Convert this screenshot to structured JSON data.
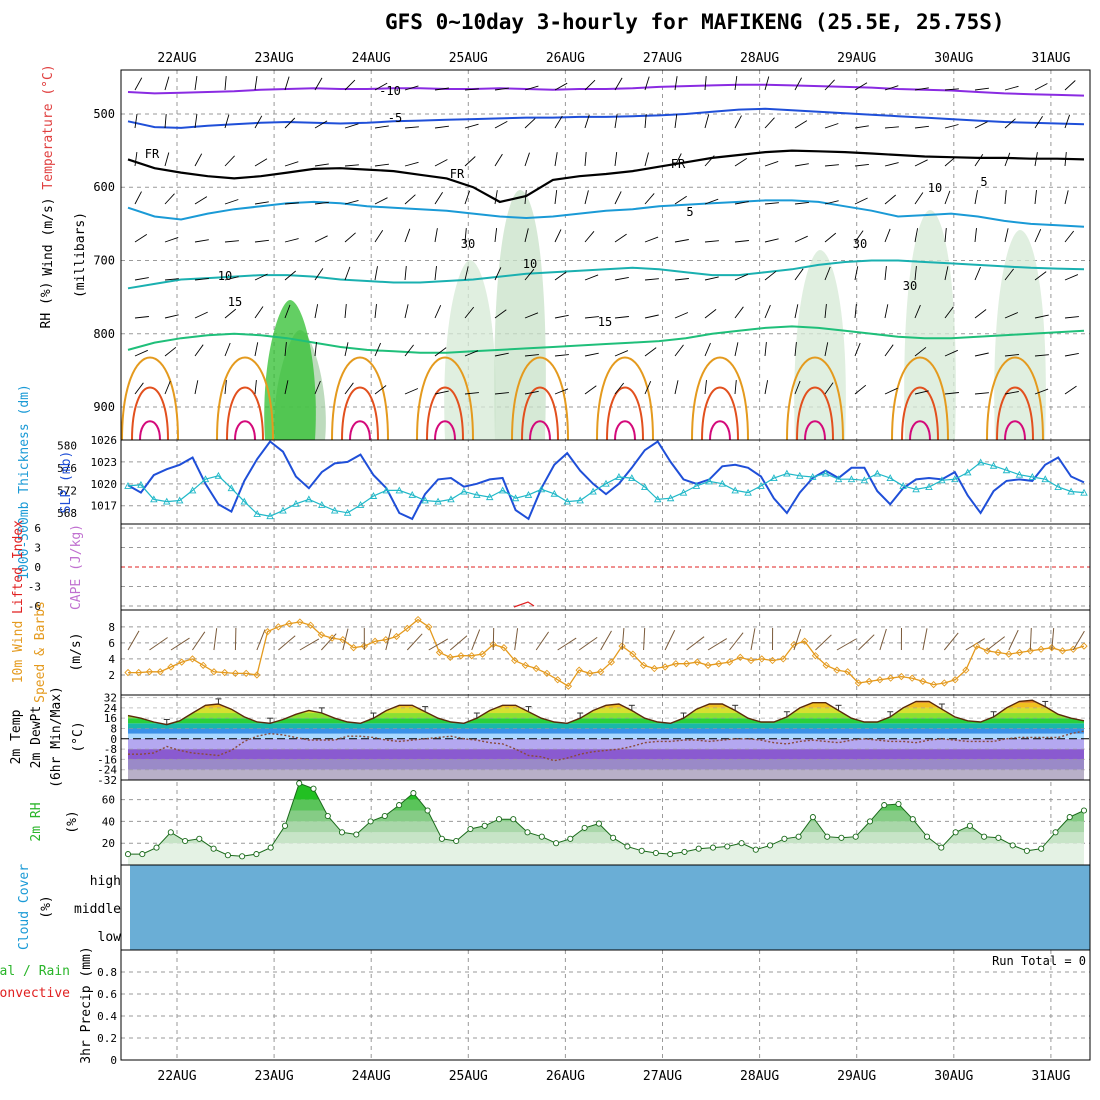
{
  "title": "GFS 0~10day 3-hourly for MAFIKENG (25.5E, 25.75S)",
  "dates": [
    "22AUG",
    "23AUG",
    "24AUG",
    "25AUG",
    "26AUG",
    "27AUG",
    "28AUG",
    "29AUG",
    "30AUG",
    "31AUG"
  ],
  "colors": {
    "grid": "#9a9a9a",
    "purple": "#8a2be2",
    "blue": "#1f4fd8",
    "cyan": "#1a9ad6",
    "teal": "#1ab0b0",
    "green": "#1fbf7a",
    "orange": "#e49a1e",
    "red": "#e2501e",
    "magenta": "#d40a7a",
    "rhfill": "#c9e5c9",
    "cloud": "#6aaed6",
    "precip_green": "#2ab52a",
    "precip_red": "#e02020"
  },
  "chart_data": [
    {
      "panel": "upper-air",
      "type": "contour",
      "ylabel_parts": [
        "Wind (m/s)",
        "Temperature (°C)",
        "RH (%)",
        "(millibars)"
      ],
      "y_ticks": [
        500,
        600,
        700,
        800,
        900
      ],
      "ylim": [
        440,
        945
      ],
      "contour_labels": [
        "-10",
        "-5",
        "FR",
        "FR",
        "FR",
        "5",
        "5",
        "10",
        "10",
        "15",
        "15",
        "10",
        "30",
        "30",
        "30"
      ],
      "isotherms": [
        {
          "label": "-10",
          "color": "purple",
          "p": [
            470,
            472,
            471,
            470,
            469,
            467,
            466,
            465,
            466,
            466,
            465,
            465,
            466,
            466,
            465,
            466,
            467,
            466,
            466,
            465,
            463,
            462,
            461,
            460,
            460,
            461,
            462,
            463,
            464,
            466,
            467,
            468,
            470,
            472,
            473,
            474,
            475
          ]
        },
        {
          "label": "-5",
          "color": "blue",
          "p": [
            510,
            518,
            519,
            516,
            514,
            512,
            511,
            512,
            513,
            512,
            510,
            509,
            508,
            507,
            506,
            505,
            505,
            504,
            504,
            503,
            502,
            500,
            497,
            494,
            493,
            495,
            497,
            499,
            501,
            503,
            505,
            507,
            509,
            511,
            512,
            513,
            514
          ]
        },
        {
          "label": "FR",
          "color": "black",
          "p": [
            562,
            574,
            580,
            585,
            588,
            585,
            580,
            575,
            574,
            576,
            578,
            583,
            588,
            600,
            620,
            612,
            590,
            585,
            582,
            578,
            572,
            566,
            560,
            556,
            552,
            550,
            551,
            552,
            554,
            556,
            558,
            559,
            560,
            560,
            561,
            561,
            562
          ]
        },
        {
          "label": "5",
          "color": "cyan",
          "p": [
            628,
            640,
            644,
            636,
            630,
            626,
            622,
            620,
            622,
            626,
            628,
            630,
            632,
            636,
            640,
            642,
            640,
            636,
            632,
            630,
            626,
            624,
            622,
            620,
            618,
            618,
            620,
            626,
            632,
            640,
            638,
            636,
            640,
            646,
            650,
            652,
            654
          ]
        },
        {
          "label": "10",
          "color": "teal",
          "p": [
            738,
            732,
            726,
            724,
            722,
            720,
            720,
            722,
            726,
            728,
            730,
            730,
            728,
            726,
            722,
            718,
            716,
            714,
            712,
            710,
            712,
            716,
            720,
            720,
            716,
            712,
            706,
            702,
            700,
            700,
            702,
            704,
            706,
            708,
            710,
            711,
            712
          ]
        },
        {
          "label": "15",
          "color": "green",
          "p": [
            822,
            812,
            806,
            802,
            800,
            802,
            806,
            812,
            818,
            822,
            824,
            826,
            826,
            824,
            822,
            820,
            818,
            816,
            814,
            812,
            810,
            806,
            800,
            796,
            792,
            790,
            792,
            796,
            800,
            804,
            806,
            806,
            804,
            802,
            800,
            798,
            796
          ]
        }
      ]
    },
    {
      "panel": "slp-thickness",
      "type": "line",
      "ylabel_left": "1000-500mb Thickness (dm)",
      "ylabel_right": "SLP (mb)",
      "thickness_ticks": [
        568,
        572,
        576,
        580
      ],
      "slp_ticks": [
        1017,
        1020,
        1023,
        1026
      ],
      "slp_ylim": [
        1014.5,
        1026
      ],
      "series": [
        {
          "name": "SLP (mb)",
          "color": "blue",
          "values": [
            1019.8,
            1018.8,
            1021.2,
            1022.0,
            1022.6,
            1023.6,
            1020.0,
            1017.2,
            1016.2,
            1020.4,
            1023.4,
            1025.8,
            1024.4,
            1021.0,
            1019.4,
            1021.6,
            1022.8,
            1023.0,
            1024.0,
            1021.2,
            1019.4,
            1016.0,
            1015.2,
            1018.6,
            1020.6,
            1020.8,
            1019.6,
            1020.0,
            1020.6,
            1020.8,
            1016.4,
            1015.2,
            1019.4,
            1022.6,
            1024.2,
            1021.8,
            1020.0,
            1018.6,
            1020.0,
            1022.2,
            1024.6,
            1025.8,
            1023.0,
            1020.6,
            1020.0,
            1020.6,
            1022.4,
            1022.6,
            1022.2,
            1021.0,
            1018.0,
            1016.0,
            1018.8,
            1020.8,
            1021.8,
            1020.8,
            1022.2,
            1022.2,
            1019.0,
            1017.2,
            1019.4,
            1020.6,
            1020.8,
            1020.6,
            1021.6,
            1018.4,
            1016.0,
            1019.0,
            1020.4,
            1020.6,
            1020.4,
            1022.6,
            1023.6,
            1021.0,
            1020.2
          ]
        },
        {
          "name": "Thickness (dm)",
          "color": "cyan",
          "values": [
            572.8,
            573.0,
            570.4,
            570.0,
            570.2,
            572.0,
            574.0,
            574.6,
            572.4,
            570.0,
            567.8,
            567.4,
            568.4,
            569.6,
            570.4,
            569.4,
            568.4,
            568.0,
            569.4,
            571.0,
            572.0,
            572.0,
            571.2,
            570.2,
            570.0,
            570.4,
            571.8,
            571.2,
            570.8,
            572.0,
            570.6,
            571.2,
            572.2,
            571.4,
            570.0,
            570.2,
            571.8,
            573.2,
            574.4,
            574.2,
            572.6,
            570.4,
            570.6,
            571.6,
            572.8,
            573.6,
            573.2,
            572.0,
            571.6,
            572.8,
            574.2,
            575.0,
            574.6,
            574.4,
            575.0,
            574.0,
            574.0,
            573.8,
            575.0,
            574.2,
            572.8,
            572.2,
            572.6,
            573.8,
            574.0,
            575.2,
            577.0,
            576.4,
            575.6,
            574.8,
            574.4,
            574.0,
            572.6,
            571.8,
            571.6
          ]
        }
      ]
    },
    {
      "panel": "cape-li",
      "type": "line",
      "ylabel_parts": [
        "CAPE (J/kg)",
        "Lifted Index"
      ],
      "y_ticks": [
        "6",
        "3",
        "0",
        "-3",
        "-6"
      ]
    },
    {
      "panel": "wind10m",
      "type": "line",
      "ylabel_parts": [
        "10m Wind",
        "Speed & Barbs",
        "(m/s)"
      ],
      "y_ticks": [
        2,
        4,
        6,
        8
      ],
      "ylim": [
        0,
        9.6
      ],
      "series": [
        {
          "name": "10m wind speed",
          "color": "orange",
          "values": [
            2.3,
            2.3,
            2.4,
            2.4,
            3.0,
            3.6,
            4.0,
            3.2,
            2.4,
            2.3,
            2.2,
            2.2,
            2.0,
            7.4,
            8.0,
            8.4,
            8.6,
            8.2,
            7.0,
            6.6,
            6.4,
            5.4,
            5.6,
            6.2,
            6.4,
            6.8,
            7.8,
            8.9,
            8.0,
            4.8,
            4.2,
            4.4,
            4.4,
            4.6,
            5.8,
            5.4,
            3.8,
            3.2,
            2.8,
            2.2,
            1.4,
            0.6,
            2.6,
            2.2,
            2.4,
            3.6,
            5.6,
            4.6,
            3.2,
            2.8,
            3.0,
            3.4,
            3.4,
            3.6,
            3.2,
            3.4,
            3.6,
            4.2,
            3.8,
            4.0,
            3.8,
            4.0,
            5.8,
            6.2,
            4.4,
            3.2,
            2.6,
            2.4,
            1.0,
            1.2,
            1.4,
            1.6,
            1.8,
            1.6,
            1.2,
            0.8,
            1.0,
            1.4,
            2.6,
            5.6,
            5.0,
            4.8,
            4.6,
            4.8,
            5.0,
            5.2,
            5.4,
            5.0,
            5.2,
            5.6
          ]
        }
      ]
    },
    {
      "panel": "temp2m",
      "type": "line",
      "ylabel_parts": [
        "2m Temp",
        "2m DewPt",
        "(6hr Min/Max)",
        "(°C)"
      ],
      "y_ticks": [
        "32",
        "24",
        "16",
        "8",
        "0",
        "-8",
        "-16",
        "-24",
        "-32"
      ],
      "ylim": [
        -32,
        34
      ],
      "series": [
        {
          "name": "2m Temp",
          "color": "brown",
          "values": [
            18,
            16,
            13,
            11,
            14,
            20,
            26,
            27,
            23,
            17,
            13,
            12,
            15,
            19,
            22,
            20,
            16,
            13,
            12,
            16,
            22,
            26,
            26,
            21,
            16,
            13,
            12,
            16,
            22,
            26,
            26,
            21,
            16,
            13,
            12,
            16,
            22,
            26,
            27,
            22,
            16,
            13,
            12,
            16,
            23,
            27,
            27,
            22,
            16,
            13,
            13,
            17,
            24,
            28,
            28,
            22,
            16,
            13,
            13,
            17,
            24,
            29,
            29,
            23,
            17,
            14,
            13,
            17,
            24,
            29,
            30,
            25,
            19,
            16,
            14
          ]
        },
        {
          "name": "2m DewPt",
          "color": "brown-dotted",
          "values": [
            -12,
            -12,
            -11,
            -6,
            -9,
            -11,
            -12,
            -13,
            -9,
            -2,
            2,
            4,
            3,
            1,
            -1,
            -1,
            -1,
            2,
            2,
            1,
            -1,
            -2,
            -1,
            0,
            1,
            2,
            0,
            -1,
            -3,
            -4,
            -8,
            -13,
            -14,
            -17,
            -15,
            -12,
            -10,
            -9,
            -8,
            -6,
            -3,
            -2,
            -2,
            -1,
            -1,
            -2,
            -1,
            0,
            0,
            -1,
            -3,
            -4,
            -2,
            -1,
            -2,
            -3,
            -1,
            0,
            -1,
            -2,
            -2,
            -3,
            -1,
            0,
            -1,
            -2,
            -2,
            -2,
            0,
            1,
            1,
            1,
            1,
            4,
            6
          ]
        }
      ]
    },
    {
      "panel": "rh2m",
      "type": "area",
      "ylabel_parts": [
        "2m RH",
        "(%)"
      ],
      "y_ticks": [
        20,
        40,
        60
      ],
      "ylim": [
        0,
        78
      ],
      "series": [
        {
          "name": "2m RH",
          "color": "green",
          "values": [
            10,
            10,
            16,
            30,
            22,
            24,
            15,
            9,
            8,
            10,
            16,
            36,
            75,
            70,
            45,
            30,
            28,
            40,
            45,
            55,
            66,
            50,
            24,
            22,
            33,
            36,
            42,
            42,
            30,
            26,
            20,
            24,
            34,
            38,
            25,
            17,
            13,
            11,
            10,
            12,
            15,
            16,
            17,
            20,
            14,
            18,
            24,
            26,
            44,
            26,
            25,
            26,
            40,
            55,
            56,
            42,
            26,
            16,
            30,
            36,
            26,
            25,
            18,
            13,
            15,
            30,
            44,
            50
          ]
        }
      ]
    },
    {
      "panel": "cloud",
      "type": "heatmap",
      "ylabel_parts": [
        "Cloud Cover",
        "(%)"
      ],
      "levels": [
        "high",
        "middle",
        "low"
      ]
    },
    {
      "panel": "precip",
      "type": "bar",
      "ylabel_parts": [
        "Total / Rain",
        "Convective",
        "3hr Precip (mm)"
      ],
      "y_ticks": [
        "0",
        "0.2",
        "0.4",
        "0.6",
        "0.8"
      ],
      "ylim": [
        0,
        1
      ],
      "run_total_label": "Run Total = 0",
      "values": []
    }
  ]
}
